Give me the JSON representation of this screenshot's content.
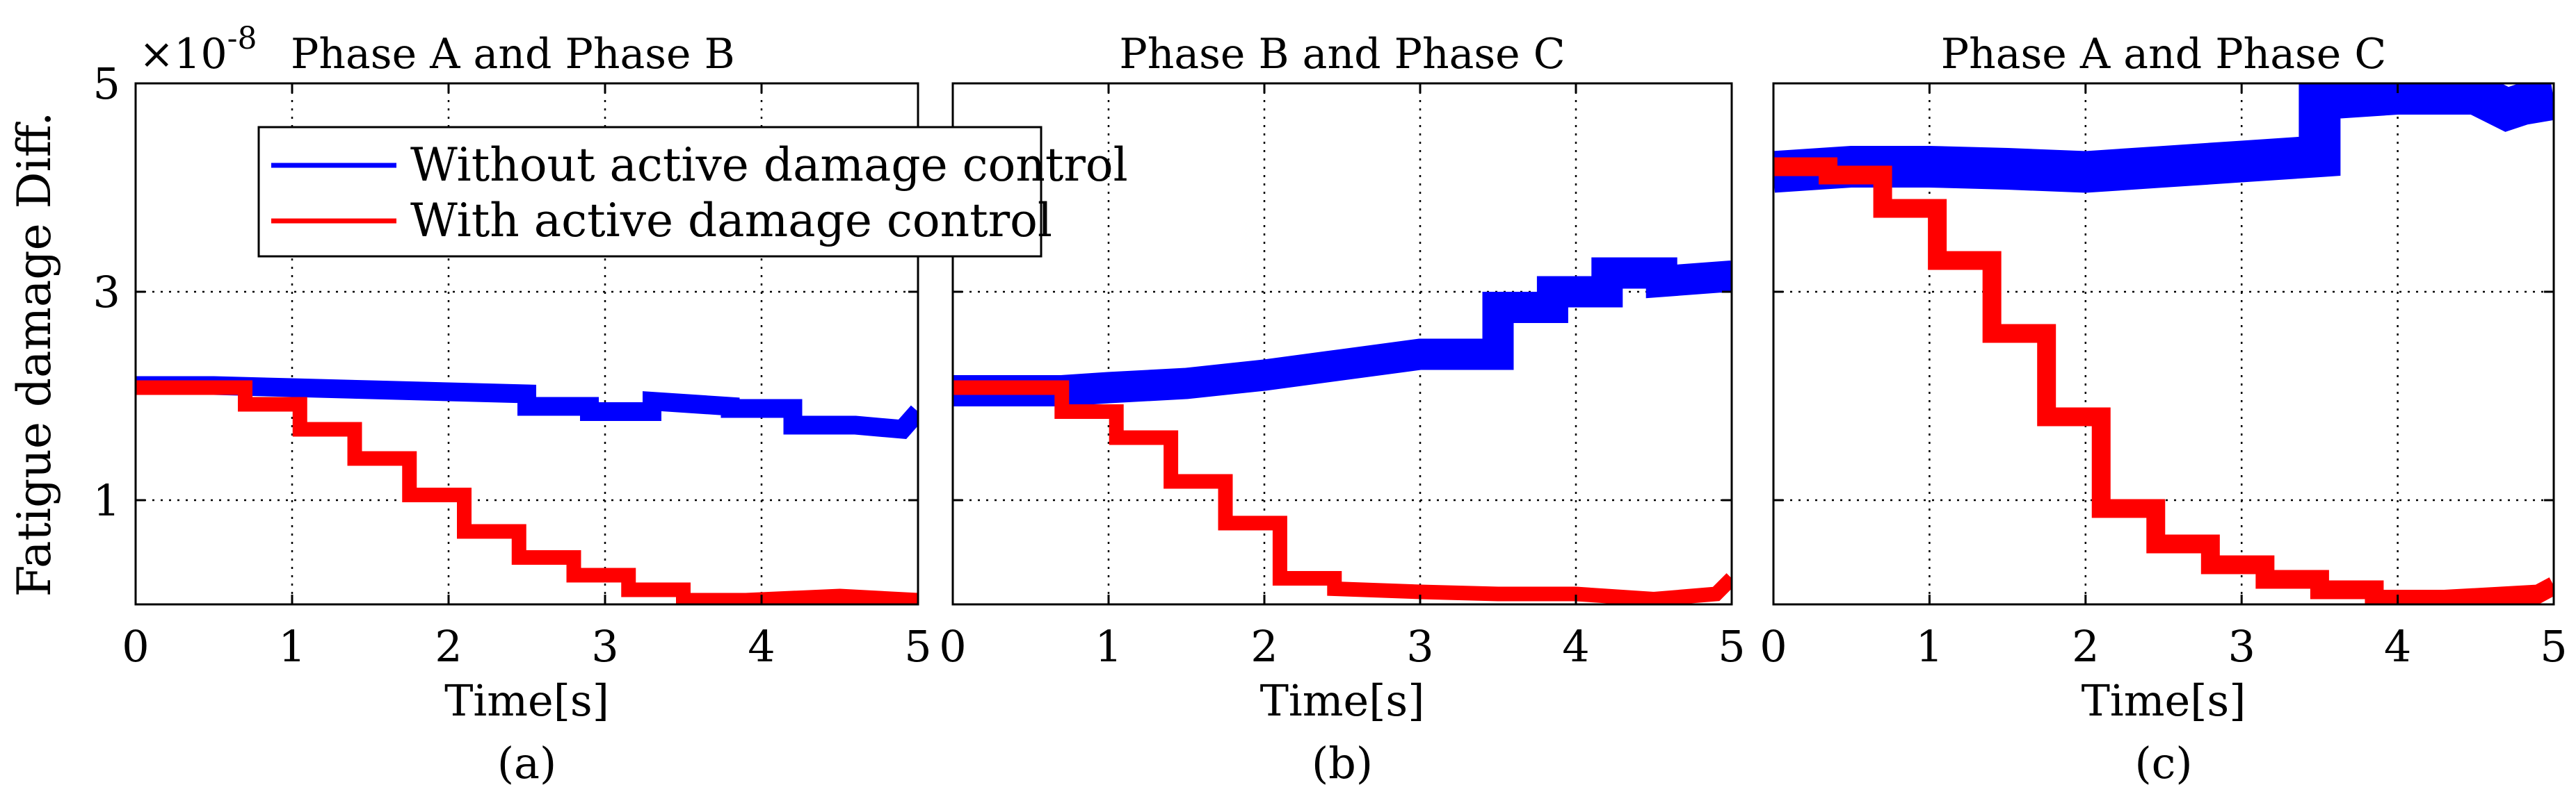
{
  "figure": {
    "ylabel": "Fatigue damage Diff.",
    "exponent": "×10",
    "exponent_power": "-8"
  },
  "legend": {
    "entries": [
      {
        "label": "Without active damage control",
        "color": "#0000ff"
      },
      {
        "label": "With active damage control",
        "color": "#ff0000"
      }
    ]
  },
  "chart_data": [
    {
      "type": "line",
      "title": "Phase A and Phase B",
      "xlabel": "Time[s]",
      "sublabel": "(a)",
      "xlim": [
        0,
        5
      ],
      "ylim": [
        0,
        5
      ],
      "xticks": [
        0,
        1,
        2,
        3,
        4,
        5
      ],
      "yticks": [
        1,
        3,
        5
      ],
      "grid": true,
      "series": [
        {
          "name": "Without active damage control",
          "color": "#0000ff",
          "band": 0.09,
          "x": [
            0,
            0.5,
            1.0,
            1.5,
            2.0,
            2.5,
            2.5,
            2.9,
            2.9,
            3.3,
            3.3,
            3.8,
            3.8,
            4.2,
            4.2,
            4.6,
            4.9,
            5.0
          ],
          "y": [
            2.1,
            2.1,
            2.08,
            2.06,
            2.04,
            2.02,
            1.9,
            1.9,
            1.85,
            1.85,
            1.95,
            1.9,
            1.88,
            1.88,
            1.72,
            1.72,
            1.68,
            1.85
          ]
        },
        {
          "name": "With active damage control",
          "color": "#ff0000",
          "band": 0.07,
          "x": [
            0,
            0.7,
            0.7,
            1.05,
            1.05,
            1.4,
            1.4,
            1.75,
            1.75,
            2.1,
            2.1,
            2.45,
            2.45,
            2.8,
            2.8,
            3.15,
            3.15,
            3.5,
            3.5,
            3.9,
            4.5,
            5.0
          ],
          "y": [
            2.08,
            2.08,
            1.92,
            1.92,
            1.68,
            1.68,
            1.4,
            1.4,
            1.05,
            1.05,
            0.7,
            0.7,
            0.45,
            0.45,
            0.28,
            0.28,
            0.14,
            0.14,
            0.04,
            0.04,
            0.08,
            0.04
          ]
        }
      ]
    },
    {
      "type": "line",
      "title": "Phase B and Phase C",
      "xlabel": "Time[s]",
      "sublabel": "(b)",
      "xlim": [
        0,
        5
      ],
      "ylim": [
        0,
        5
      ],
      "xticks": [
        0,
        1,
        2,
        3,
        4,
        5
      ],
      "yticks": [
        1,
        3,
        5
      ],
      "grid": true,
      "series": [
        {
          "name": "Without active damage control",
          "color": "#0000ff",
          "band": 0.15,
          "x": [
            0,
            0.7,
            1.0,
            1.5,
            2.0,
            2.5,
            3.0,
            3.5,
            3.5,
            3.85,
            3.85,
            4.2,
            4.2,
            4.55,
            4.55,
            5.0
          ],
          "y": [
            2.05,
            2.05,
            2.08,
            2.12,
            2.2,
            2.3,
            2.4,
            2.4,
            2.85,
            2.85,
            3.0,
            3.0,
            3.18,
            3.18,
            3.1,
            3.15
          ]
        },
        {
          "name": "With active damage control",
          "color": "#ff0000",
          "band": 0.07,
          "x": [
            0,
            0.7,
            0.7,
            1.05,
            1.05,
            1.4,
            1.4,
            1.75,
            1.75,
            2.1,
            2.1,
            2.45,
            2.45,
            3.0,
            3.5,
            4.0,
            4.5,
            4.9,
            5.0
          ],
          "y": [
            2.08,
            2.08,
            1.85,
            1.85,
            1.6,
            1.6,
            1.18,
            1.18,
            0.78,
            0.78,
            0.25,
            0.25,
            0.15,
            0.12,
            0.1,
            0.1,
            0.05,
            0.1,
            0.25
          ]
        }
      ]
    },
    {
      "type": "line",
      "title": "Phase A and Phase C",
      "xlabel": "Time[s]",
      "sublabel": "(c)",
      "xlim": [
        0,
        5
      ],
      "ylim": [
        0,
        5
      ],
      "xticks": [
        0,
        1,
        2,
        3,
        4,
        5
      ],
      "yticks": [
        1,
        3,
        5
      ],
      "grid": true,
      "series": [
        {
          "name": "Without active damage control",
          "color": "#0000ff",
          "band": 0.2,
          "x": [
            0,
            0.5,
            1.0,
            1.5,
            2.0,
            2.5,
            3.0,
            3.5,
            3.5,
            4.0,
            4.5,
            4.7,
            4.8,
            5.0
          ],
          "y": [
            4.15,
            4.2,
            4.2,
            4.18,
            4.15,
            4.2,
            4.25,
            4.3,
            4.85,
            4.9,
            4.9,
            4.75,
            4.8,
            4.85
          ]
        },
        {
          "name": "With active damage control",
          "color": "#ff0000",
          "band": 0.09,
          "x": [
            0,
            0.35,
            0.35,
            0.7,
            0.7,
            1.05,
            1.05,
            1.4,
            1.4,
            1.75,
            1.75,
            2.1,
            2.1,
            2.45,
            2.45,
            2.8,
            2.8,
            3.15,
            3.15,
            3.5,
            3.5,
            3.85,
            3.85,
            4.3,
            4.9,
            5.0
          ],
          "y": [
            4.2,
            4.2,
            4.12,
            4.12,
            3.8,
            3.8,
            3.3,
            3.3,
            2.6,
            2.6,
            1.8,
            1.8,
            0.92,
            0.92,
            0.58,
            0.58,
            0.38,
            0.38,
            0.24,
            0.24,
            0.14,
            0.14,
            0.05,
            0.05,
            0.1,
            0.18
          ]
        }
      ]
    }
  ]
}
